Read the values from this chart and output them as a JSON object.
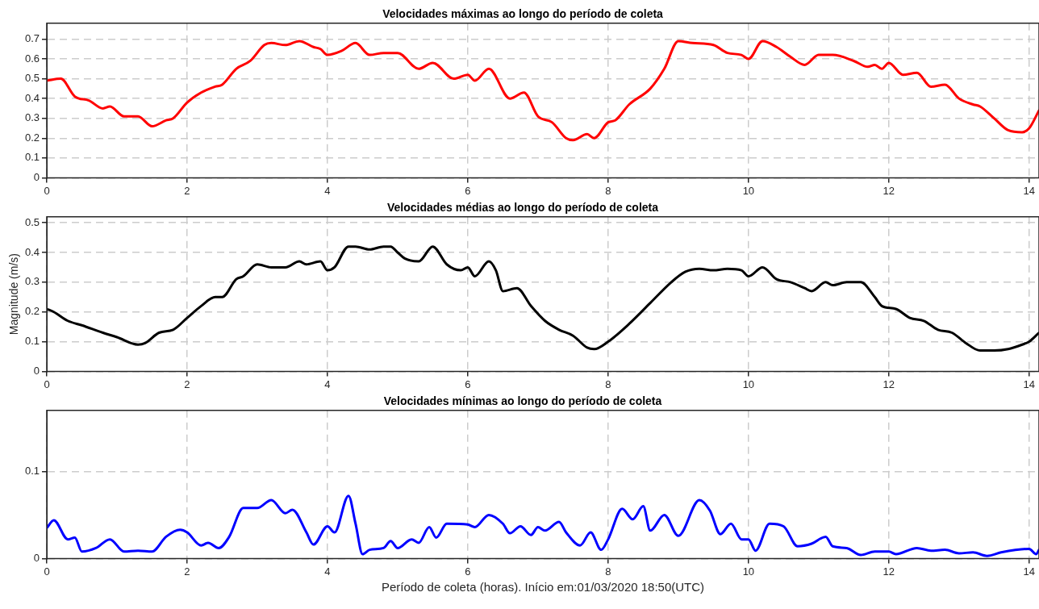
{
  "chart_data": [
    {
      "type": "line",
      "title": "Velocidades máximas ao longo do período de coleta",
      "xlim": [
        0,
        14.14
      ],
      "xticks": [
        0,
        2,
        4,
        6,
        8,
        10,
        12,
        14
      ],
      "ylim": [
        0,
        0.78
      ],
      "yticks": [
        0,
        0.1,
        0.2,
        0.3,
        0.4,
        0.5,
        0.6,
        0.7
      ],
      "grid": true,
      "marker": "none",
      "line_style": "solid",
      "x": [
        0,
        0.2,
        0.4,
        0.6,
        0.8,
        0.9,
        1.1,
        1.3,
        1.5,
        1.7,
        1.8,
        2.0,
        2.2,
        2.4,
        2.5,
        2.7,
        2.9,
        3.1,
        3.2,
        3.4,
        3.6,
        3.8,
        3.9,
        4.0,
        4.2,
        4.4,
        4.6,
        4.8,
        5.0,
        5.3,
        5.5,
        5.8,
        6.0,
        6.1,
        6.3,
        6.6,
        6.8,
        7.0,
        7.2,
        7.4,
        7.5,
        7.7,
        7.8,
        8.0,
        8.1,
        8.3,
        8.6,
        8.8,
        9.0,
        9.2,
        9.5,
        9.7,
        9.9,
        10.0,
        10.2,
        10.4,
        10.6,
        10.8,
        11.0,
        11.2,
        11.5,
        11.7,
        11.8,
        11.9,
        12.0,
        12.2,
        12.4,
        12.6,
        12.8,
        13.0,
        13.2,
        13.3,
        13.5,
        13.7,
        13.9,
        14.0,
        14.14
      ],
      "series": [
        {
          "color": "#ff0000",
          "values": [
            0.49,
            0.5,
            0.41,
            0.39,
            0.35,
            0.36,
            0.31,
            0.31,
            0.26,
            0.29,
            0.3,
            0.38,
            0.43,
            0.46,
            0.47,
            0.55,
            0.59,
            0.67,
            0.68,
            0.67,
            0.69,
            0.66,
            0.65,
            0.62,
            0.64,
            0.68,
            0.62,
            0.63,
            0.63,
            0.55,
            0.58,
            0.5,
            0.52,
            0.49,
            0.55,
            0.4,
            0.43,
            0.31,
            0.28,
            0.2,
            0.19,
            0.22,
            0.2,
            0.28,
            0.29,
            0.37,
            0.45,
            0.55,
            0.69,
            0.68,
            0.67,
            0.63,
            0.62,
            0.6,
            0.69,
            0.66,
            0.61,
            0.57,
            0.62,
            0.62,
            0.59,
            0.56,
            0.57,
            0.55,
            0.58,
            0.52,
            0.53,
            0.46,
            0.47,
            0.4,
            0.37,
            0.36,
            0.3,
            0.24,
            0.23,
            0.25,
            0.34
          ]
        }
      ]
    },
    {
      "type": "line",
      "title": "Velocidades médias ao longo do período de coleta",
      "ylabel": "Magnitude (m/s)",
      "xlim": [
        0,
        14.14
      ],
      "xticks": [
        0,
        2,
        4,
        6,
        8,
        10,
        12,
        14
      ],
      "ylim": [
        0,
        0.52
      ],
      "yticks": [
        0,
        0.1,
        0.2,
        0.3,
        0.4,
        0.5
      ],
      "grid": true,
      "marker": "none",
      "line_style": "solid",
      "x": [
        0,
        0.1,
        0.3,
        0.5,
        0.8,
        1.0,
        1.3,
        1.4,
        1.6,
        1.8,
        2.0,
        2.2,
        2.4,
        2.5,
        2.7,
        2.8,
        3.0,
        3.2,
        3.4,
        3.6,
        3.7,
        3.9,
        4.0,
        4.1,
        4.3,
        4.4,
        4.6,
        4.8,
        4.9,
        5.0,
        5.1,
        5.3,
        5.5,
        5.7,
        5.9,
        6.0,
        6.1,
        6.3,
        6.4,
        6.5,
        6.7,
        6.9,
        7.1,
        7.3,
        7.5,
        7.7,
        7.8,
        8.0,
        8.3,
        8.6,
        8.9,
        9.1,
        9.3,
        9.5,
        9.7,
        9.9,
        10.0,
        10.2,
        10.4,
        10.6,
        10.8,
        10.9,
        11.1,
        11.2,
        11.4,
        11.6,
        11.8,
        11.9,
        12.1,
        12.3,
        12.5,
        12.7,
        12.9,
        13.1,
        13.3,
        13.5,
        13.7,
        13.9,
        14.0,
        14.14
      ],
      "series": [
        {
          "color": "#000000",
          "values": [
            0.21,
            0.2,
            0.17,
            0.155,
            0.13,
            0.115,
            0.09,
            0.095,
            0.13,
            0.14,
            0.18,
            0.22,
            0.25,
            0.25,
            0.31,
            0.32,
            0.36,
            0.35,
            0.35,
            0.37,
            0.36,
            0.37,
            0.34,
            0.35,
            0.42,
            0.42,
            0.41,
            0.42,
            0.42,
            0.4,
            0.38,
            0.37,
            0.42,
            0.36,
            0.34,
            0.35,
            0.32,
            0.37,
            0.34,
            0.27,
            0.28,
            0.22,
            0.17,
            0.14,
            0.12,
            0.08,
            0.075,
            0.1,
            0.16,
            0.23,
            0.3,
            0.335,
            0.345,
            0.34,
            0.345,
            0.34,
            0.32,
            0.35,
            0.31,
            0.3,
            0.28,
            0.27,
            0.3,
            0.29,
            0.3,
            0.3,
            0.25,
            0.22,
            0.21,
            0.18,
            0.17,
            0.14,
            0.13,
            0.095,
            0.07,
            0.07,
            0.075,
            0.09,
            0.1,
            0.13
          ]
        }
      ]
    },
    {
      "type": "line",
      "title": "Velocidades mínimas ao longo do período de coleta",
      "xlabel": "Período de coleta (horas). Início em:01/03/2020 18:50(UTC)",
      "xlim": [
        0,
        14.14
      ],
      "xticks": [
        0,
        2,
        4,
        6,
        8,
        10,
        12,
        14
      ],
      "ylim": [
        0,
        0.17
      ],
      "yticks": [
        0,
        0.1
      ],
      "grid": true,
      "marker": "none",
      "line_style": "solid",
      "x": [
        0,
        0.1,
        0.3,
        0.4,
        0.5,
        0.7,
        0.9,
        1.1,
        1.3,
        1.5,
        1.7,
        1.9,
        2.0,
        2.2,
        2.3,
        2.45,
        2.6,
        2.8,
        3.0,
        3.2,
        3.4,
        3.5,
        3.7,
        3.8,
        4.0,
        4.1,
        4.3,
        4.4,
        4.5,
        4.6,
        4.8,
        4.9,
        5.0,
        5.2,
        5.3,
        5.45,
        5.55,
        5.7,
        6.0,
        6.1,
        6.3,
        6.5,
        6.6,
        6.75,
        6.9,
        7.0,
        7.1,
        7.3,
        7.4,
        7.6,
        7.75,
        7.9,
        8.0,
        8.2,
        8.35,
        8.5,
        8.6,
        8.8,
        9.0,
        9.3,
        9.45,
        9.6,
        9.75,
        9.9,
        10.0,
        10.1,
        10.3,
        10.5,
        10.7,
        10.9,
        11.1,
        11.2,
        11.4,
        11.6,
        11.8,
        12.0,
        12.1,
        12.4,
        12.6,
        12.8,
        13.0,
        13.2,
        13.4,
        13.6,
        14.0,
        14.1,
        14.14
      ],
      "series": [
        {
          "color": "#0000ff",
          "values": [
            0.035,
            0.044,
            0.022,
            0.024,
            0.008,
            0.012,
            0.022,
            0.008,
            0.009,
            0.008,
            0.025,
            0.033,
            0.03,
            0.015,
            0.018,
            0.012,
            0.025,
            0.058,
            0.058,
            0.067,
            0.052,
            0.056,
            0.03,
            0.016,
            0.037,
            0.03,
            0.072,
            0.04,
            0.005,
            0.01,
            0.012,
            0.02,
            0.012,
            0.022,
            0.018,
            0.036,
            0.024,
            0.04,
            0.039,
            0.036,
            0.05,
            0.04,
            0.029,
            0.037,
            0.027,
            0.036,
            0.032,
            0.042,
            0.03,
            0.015,
            0.03,
            0.01,
            0.022,
            0.057,
            0.045,
            0.06,
            0.032,
            0.05,
            0.026,
            0.067,
            0.055,
            0.028,
            0.04,
            0.022,
            0.022,
            0.009,
            0.04,
            0.037,
            0.014,
            0.017,
            0.025,
            0.014,
            0.012,
            0.004,
            0.008,
            0.008,
            0.005,
            0.012,
            0.009,
            0.01,
            0.006,
            0.007,
            0.003,
            0.007,
            0.011,
            0.005,
            0.01
          ]
        }
      ]
    }
  ]
}
